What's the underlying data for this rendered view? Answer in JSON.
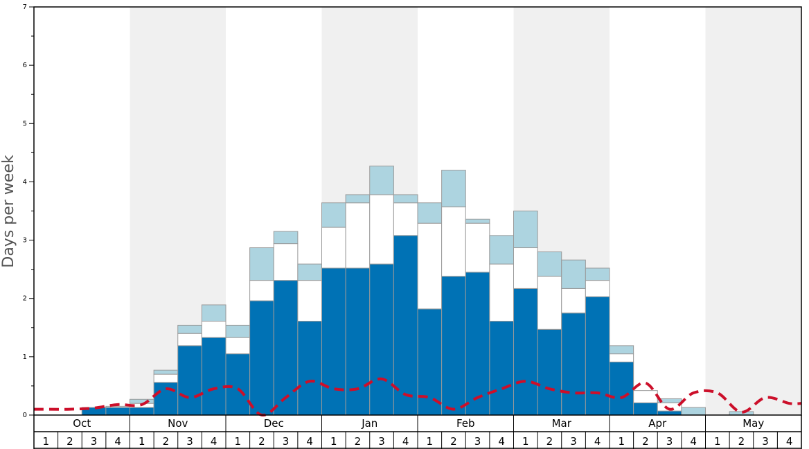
{
  "chart_data": {
    "type": "bar",
    "stacked": true,
    "ylabel": "Days per week",
    "ylim": [
      0,
      7
    ],
    "yticks": [
      0,
      1,
      2,
      3,
      4,
      5,
      6,
      7
    ],
    "months": [
      "Oct",
      "Nov",
      "Dec",
      "Jan",
      "Feb",
      "Mar",
      "Apr",
      "May"
    ],
    "weeks": [
      "1",
      "2",
      "3",
      "4"
    ],
    "categories": [
      "Oct 1",
      "Oct 2",
      "Oct 3",
      "Oct 4",
      "Nov 1",
      "Nov 2",
      "Nov 3",
      "Nov 4",
      "Dec 1",
      "Dec 2",
      "Dec 3",
      "Dec 4",
      "Jan 1",
      "Jan 2",
      "Jan 3",
      "Jan 4",
      "Feb 1",
      "Feb 2",
      "Feb 3",
      "Feb 4",
      "Mar 1",
      "Mar 2",
      "Mar 3",
      "Mar 4",
      "Apr 1",
      "Apr 2",
      "Apr 3",
      "Apr 4",
      "May 1",
      "May 2",
      "May 3",
      "May 4"
    ],
    "series": [
      {
        "color": "#0072b5",
        "values": [
          0,
          0,
          0.13,
          0.13,
          0.13,
          0.56,
          1.19,
          1.33,
          1.05,
          1.96,
          2.31,
          1.61,
          2.52,
          2.52,
          2.59,
          3.08,
          1.82,
          2.38,
          2.45,
          1.61,
          2.17,
          1.47,
          1.75,
          2.03,
          0.91,
          0.21,
          0.07,
          0,
          0,
          0,
          0,
          0
        ]
      },
      {
        "color": "#ffffff",
        "values": [
          0,
          0,
          0,
          0.02,
          0.07,
          0.14,
          0.21,
          0.28,
          0.28,
          0.35,
          0.63,
          0.7,
          0.7,
          1.12,
          1.19,
          0.56,
          1.47,
          1.19,
          0.84,
          0.98,
          0.7,
          0.91,
          0.42,
          0.28,
          0.14,
          0.21,
          0.14,
          0,
          0,
          0,
          0,
          0
        ]
      },
      {
        "color": "#add4e0",
        "values": [
          0,
          0,
          0,
          0,
          0.07,
          0.07,
          0.14,
          0.28,
          0.21,
          0.56,
          0.21,
          0.28,
          0.42,
          0.14,
          0.49,
          0.14,
          0.35,
          0.63,
          0.07,
          0.49,
          0.63,
          0.42,
          0.49,
          0.21,
          0.14,
          0,
          0.07,
          0.13,
          0,
          0.06,
          0,
          0
        ]
      }
    ],
    "line": {
      "color": "#cc0f2a",
      "style": "dashed",
      "values": [
        0.1,
        0.1,
        0.12,
        0.18,
        0.18,
        0.45,
        0.3,
        0.45,
        0.45,
        0.0,
        0.3,
        0.58,
        0.45,
        0.45,
        0.62,
        0.35,
        0.3,
        0.1,
        0.3,
        0.45,
        0.58,
        0.45,
        0.38,
        0.38,
        0.3,
        0.55,
        0.1,
        0.38,
        0.38,
        0.05,
        0.3,
        0.2
      ]
    },
    "shaded_months": [
      "Nov",
      "Jan",
      "Mar",
      "May"
    ],
    "shade_color": "#f0f0f0"
  }
}
